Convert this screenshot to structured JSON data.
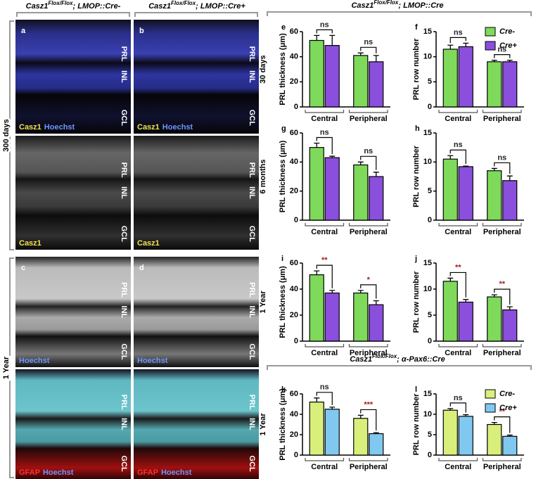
{
  "figure": {
    "left_headers": [
      {
        "base": "Casz1",
        "sup": "Flox/Flox",
        "rest": "; LMOP::Cre-"
      },
      {
        "base": "Casz1",
        "sup": "Flox/Flox",
        "rest": "; LMOP::Cre+"
      }
    ],
    "row_labels": [
      "300 days",
      "1 Year"
    ],
    "tiles": [
      {
        "letter": "a",
        "layer_labels": [
          "PRL",
          "INL",
          "GCL"
        ],
        "stains": [
          {
            "text": "Casz1",
            "color": "#f2e24a"
          },
          {
            "text": "Hoechst",
            "color": "#6f95ff"
          }
        ]
      },
      {
        "letter": "b",
        "layer_labels": [
          "PRL",
          "INL",
          "GCL"
        ],
        "stains": [
          {
            "text": "Casz1",
            "color": "#f2e24a"
          },
          {
            "text": "Hoechst",
            "color": "#6f95ff"
          }
        ]
      },
      {
        "layer_labels": [
          "PRL",
          "INL",
          "GCL"
        ],
        "stains": [
          {
            "text": "Casz1",
            "color": "#f2e24a"
          }
        ]
      },
      {
        "layer_labels": [
          "PRL",
          "INL",
          "GCL"
        ],
        "stains": [
          {
            "text": "Casz1",
            "color": "#f2e24a"
          }
        ]
      },
      {
        "letter": "c",
        "layer_labels": [
          "PRL",
          "INL",
          "GCL"
        ],
        "stains": [
          {
            "text": "Hoechst",
            "color": "#6f95ff"
          }
        ]
      },
      {
        "letter": "d",
        "layer_labels": [
          "PRL",
          "INL",
          "GCL"
        ],
        "stains": [
          {
            "text": "Hoechst",
            "color": "#6f95ff"
          }
        ]
      },
      {
        "layer_labels": [
          "PRL",
          "INL",
          "GCL"
        ],
        "stains": [
          {
            "text": "GFAP",
            "color": "#ff3030"
          },
          {
            "text": "Hoechst",
            "color": "#6f95ff"
          }
        ]
      },
      {
        "layer_labels": [
          "PRL",
          "INL",
          "GCL"
        ],
        "stains": [
          {
            "text": "GFAP",
            "color": "#ff3030"
          },
          {
            "text": "Hoechst",
            "color": "#6f95ff"
          }
        ]
      }
    ],
    "right_headers": [
      {
        "base": "Casz1",
        "sup": "Flox/Flox",
        "rest": "; LMOP::Cre"
      },
      {
        "base": "Casz1",
        "sup": "Flox/Flox",
        "rest": "; α-Pax6::Cre"
      }
    ]
  },
  "chart_data": [
    {
      "type": "bar",
      "panel": "e",
      "side_label": "30 days",
      "y_label": "PRL thickness (μm)",
      "categories": [
        "Central",
        "Peripheral"
      ],
      "series": [
        {
          "name": "Cre-",
          "color": "#7fd95a",
          "values": [
            53,
            41
          ],
          "errors": [
            4,
            2
          ]
        },
        {
          "name": "Cre+",
          "color": "#8a4fdc",
          "values": [
            49,
            36
          ],
          "errors": [
            8,
            5
          ]
        }
      ],
      "annotations": [
        {
          "label": "ns",
          "color": "#222222"
        },
        {
          "label": "ns",
          "color": "#222222"
        }
      ],
      "ylim": [
        0,
        60
      ],
      "yticks": [
        0,
        20,
        40,
        60
      ]
    },
    {
      "type": "bar",
      "panel": "f",
      "y_label": "PRL row number",
      "categories": [
        "Central",
        "Peripheral"
      ],
      "series": [
        {
          "name": "Cre-",
          "color": "#7fd95a",
          "values": [
            11.5,
            9
          ],
          "errors": [
            0.8,
            0.3
          ]
        },
        {
          "name": "Cre+",
          "color": "#8a4fdc",
          "values": [
            12,
            9
          ],
          "errors": [
            0.7,
            0.3
          ]
        }
      ],
      "annotations": [
        {
          "label": "ns",
          "color": "#222222"
        },
        {
          "label": "ns",
          "color": "#222222"
        }
      ],
      "ylim": [
        0,
        15
      ],
      "yticks": [
        0,
        5,
        10,
        15
      ],
      "legend": "upper right"
    },
    {
      "type": "bar",
      "panel": "g",
      "side_label": "6 months",
      "y_label": "PRL thickness (μm)",
      "categories": [
        "Central",
        "Peripheral"
      ],
      "series": [
        {
          "name": "Cre-",
          "color": "#7fd95a",
          "values": [
            50,
            38
          ],
          "errors": [
            3,
            2
          ]
        },
        {
          "name": "Cre+",
          "color": "#8a4fdc",
          "values": [
            43,
            30
          ],
          "errors": [
            1,
            3
          ]
        }
      ],
      "annotations": [
        {
          "label": "ns",
          "color": "#222222"
        },
        {
          "label": "ns",
          "color": "#222222"
        }
      ],
      "ylim": [
        0,
        60
      ],
      "yticks": [
        0,
        20,
        40,
        60
      ]
    },
    {
      "type": "bar",
      "panel": "h",
      "y_label": "PRL row number",
      "categories": [
        "Central",
        "Peripheral"
      ],
      "series": [
        {
          "name": "Cre-",
          "color": "#7fd95a",
          "values": [
            10.5,
            8.5
          ],
          "errors": [
            0.6,
            0.4
          ]
        },
        {
          "name": "Cre+",
          "color": "#8a4fdc",
          "values": [
            9.2,
            6.8
          ],
          "errors": [
            0.1,
            0.8
          ]
        }
      ],
      "annotations": [
        {
          "label": "ns",
          "color": "#222222"
        },
        {
          "label": "ns",
          "color": "#222222"
        }
      ],
      "ylim": [
        0,
        15
      ],
      "yticks": [
        0,
        5,
        10,
        15
      ]
    },
    {
      "type": "bar",
      "panel": "i",
      "side_label": "1 Year",
      "y_label": "PRL thickness (μm)",
      "categories": [
        "Central",
        "Peripheral"
      ],
      "series": [
        {
          "name": "Cre-",
          "color": "#7fd95a",
          "values": [
            51,
            37
          ],
          "errors": [
            3,
            2
          ]
        },
        {
          "name": "Cre+",
          "color": "#8a4fdc",
          "values": [
            37,
            28
          ],
          "errors": [
            2,
            3
          ]
        }
      ],
      "annotations": [
        {
          "label": "**",
          "color": "#a3201c"
        },
        {
          "label": "*",
          "color": "#a3201c"
        }
      ],
      "ylim": [
        0,
        60
      ],
      "yticks": [
        0,
        20,
        40,
        60
      ]
    },
    {
      "type": "bar",
      "panel": "j",
      "y_label": "PRL row number",
      "categories": [
        "Central",
        "Peripheral"
      ],
      "series": [
        {
          "name": "Cre-",
          "color": "#7fd95a",
          "values": [
            11.5,
            8.5
          ],
          "errors": [
            0.6,
            0.4
          ]
        },
        {
          "name": "Cre+",
          "color": "#8a4fdc",
          "values": [
            7.5,
            6
          ],
          "errors": [
            0.5,
            0.6
          ]
        }
      ],
      "annotations": [
        {
          "label": "**",
          "color": "#a3201c"
        },
        {
          "label": "**",
          "color": "#a3201c"
        }
      ],
      "ylim": [
        0,
        15
      ],
      "yticks": [
        0,
        5,
        10,
        15
      ]
    },
    {
      "type": "bar",
      "panel": "k",
      "side_label": "1 Year",
      "y_label": "PRL thickness (μm)",
      "categories": [
        "Central",
        "Peripheral"
      ],
      "series": [
        {
          "name": "Cre-",
          "color": "#d8ef7c",
          "values": [
            52,
            36
          ],
          "errors": [
            4,
            3
          ]
        },
        {
          "name": "Cre+",
          "color": "#80c8f0",
          "values": [
            45,
            21
          ],
          "errors": [
            2,
            1
          ]
        }
      ],
      "annotations": [
        {
          "label": "ns",
          "color": "#222222"
        },
        {
          "label": "***",
          "color": "#a3201c"
        }
      ],
      "ylim": [
        0,
        60
      ],
      "yticks": [
        0,
        20,
        40,
        60
      ]
    },
    {
      "type": "bar",
      "panel": "l",
      "y_label": "PRL row number",
      "categories": [
        "Central",
        "Peripheral"
      ],
      "series": [
        {
          "name": "Cre-",
          "color": "#d8ef7c",
          "values": [
            11,
            7.5
          ],
          "errors": [
            0.4,
            0.5
          ]
        },
        {
          "name": "Cre+",
          "color": "#80c8f0",
          "values": [
            9.5,
            4.6
          ],
          "errors": [
            0.4,
            0.3
          ]
        }
      ],
      "annotations": [
        {
          "label": "ns",
          "color": "#222222"
        },
        {
          "label": "**",
          "color": "#a3201c"
        }
      ],
      "ylim": [
        0,
        15
      ],
      "yticks": [
        0,
        5,
        10,
        15
      ],
      "legend": "upper right"
    }
  ]
}
